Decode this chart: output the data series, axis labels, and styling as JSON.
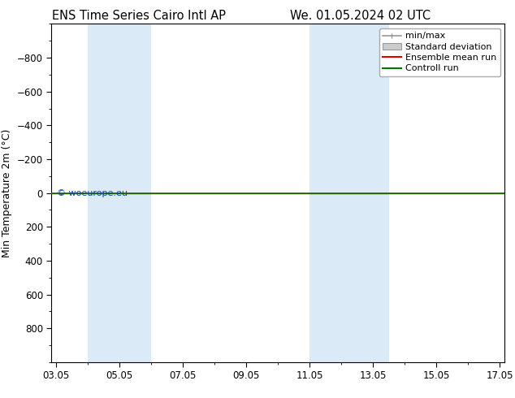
{
  "title_left": "ENS Time Series Cairo Intl AP",
  "title_right": "We. 01.05.2024 02 UTC",
  "ylabel": "Min Temperature 2m (°C)",
  "ylim_top": -1000,
  "ylim_bottom": 1000,
  "yticks": [
    -800,
    -600,
    -400,
    -200,
    0,
    200,
    400,
    600,
    800
  ],
  "xtick_labels": [
    "03.05",
    "05.05",
    "07.05",
    "09.05",
    "11.05",
    "13.05",
    "15.05",
    "17.05"
  ],
  "xtick_positions": [
    0,
    2,
    4,
    6,
    8,
    10,
    12,
    14
  ],
  "xlim": [
    -0.15,
    14.15
  ],
  "band_ranges": [
    [
      1.0,
      3.0
    ],
    [
      8.0,
      10.5
    ]
  ],
  "green_line_y": 0,
  "red_line_y": 0,
  "background_color": "#ffffff",
  "band_color": "#daeaf7",
  "green_line_color": "#007700",
  "red_line_color": "#dd0000",
  "minmax_color": "#999999",
  "stddev_color": "#cccccc",
  "copyright_text": "© woeurope.eu",
  "copyright_color": "#0044bb",
  "title_fontsize": 10.5,
  "axis_label_fontsize": 9,
  "tick_fontsize": 8.5,
  "legend_fontsize": 8
}
